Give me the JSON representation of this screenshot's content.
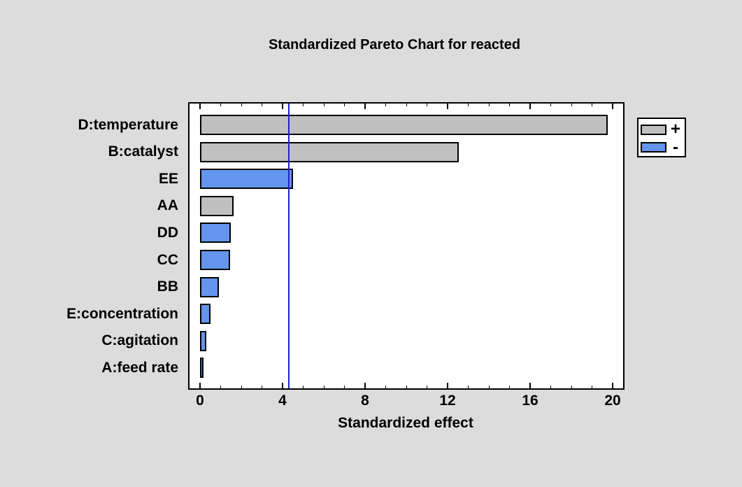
{
  "window": {
    "background": "#DCDCDC"
  },
  "chart_data": {
    "type": "bar",
    "orientation": "horizontal",
    "title": "Standardized Pareto Chart for reacted",
    "xlabel": "Standardized effect",
    "xlim": [
      0,
      20
    ],
    "xticks": [
      0,
      4,
      8,
      12,
      16,
      20
    ],
    "minor_tick_step": 1,
    "grid": false,
    "reference_line_x": 4.3,
    "categories": [
      "D:temperature",
      "B:catalyst",
      "EE",
      "AA",
      "DD",
      "CC",
      "BB",
      "E:concentration",
      "C:agitation",
      "A:feed rate"
    ],
    "values": [
      19.75,
      12.55,
      4.5,
      1.63,
      1.48,
      1.46,
      0.92,
      0.5,
      0.3,
      0.18
    ],
    "signs": [
      "+",
      "+",
      "-",
      "+",
      "-",
      "-",
      "-",
      "-",
      "-",
      "-"
    ],
    "colors": {
      "positive_bar": "#C0C0C0",
      "negative_bar": "#6495ED",
      "bar_border": "#000000",
      "reference_line": "#2222CC",
      "plot_background": "#FFFFFF",
      "page_background": "#DCDCDC"
    },
    "legend": {
      "position": "top-right",
      "entries": [
        {
          "label": "+",
          "color": "#C0C0C0"
        },
        {
          "label": "-",
          "color": "#6495ED"
        }
      ]
    }
  }
}
